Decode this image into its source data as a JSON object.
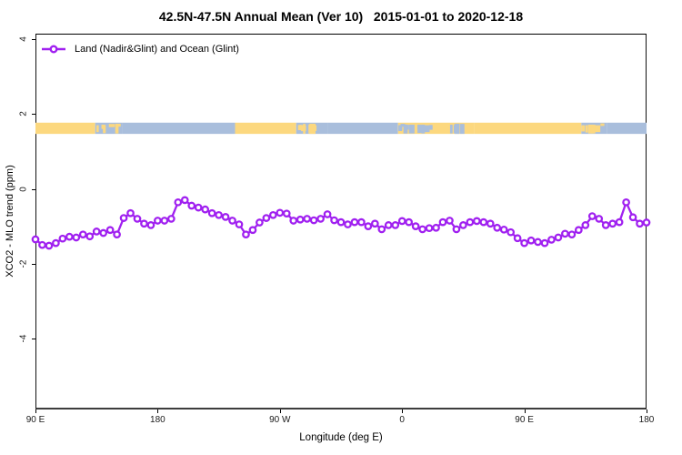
{
  "title": "42.5N-47.5N Annual Mean (Ver 10)   2015-01-01 to 2020-12-18",
  "legend": {
    "label": "Land (Nadir&Glint) and Ocean (Glint)"
  },
  "chart_data": {
    "type": "line",
    "title": "42.5N-47.5N Annual Mean (Ver 10)   2015-01-01 to 2020-12-18",
    "xlabel": "Longitude (deg E)",
    "ylabel": "XCO2 - MLO trend (ppm)",
    "xlim": [
      90,
      540
    ],
    "ylim": [
      -5.9,
      4.15
    ],
    "grid": false,
    "legend_position": "top-left",
    "x_ticks": [
      {
        "value": 90,
        "label": "90 E"
      },
      {
        "value": 180,
        "label": "180"
      },
      {
        "value": 270,
        "label": "90 W"
      },
      {
        "value": 360,
        "label": "0"
      },
      {
        "value": 450,
        "label": "90 E"
      },
      {
        "value": 540,
        "label": "180"
      }
    ],
    "y_ticks": [
      {
        "value": 4,
        "label": "4"
      },
      {
        "value": 2,
        "label": "2"
      },
      {
        "value": 0,
        "label": "0"
      },
      {
        "value": -2,
        "label": "-2"
      },
      {
        "value": -4,
        "label": "-4"
      }
    ],
    "series": [
      {
        "name": "Land (Nadir&Glint) and Ocean (Glint)",
        "color": "#A020F0",
        "marker": "open-circle",
        "x": [
          90,
          95,
          100,
          105,
          110,
          115,
          120,
          125,
          130,
          135,
          140,
          145,
          150,
          155,
          160,
          165,
          170,
          175,
          180,
          185,
          190,
          195,
          200,
          205,
          210,
          215,
          220,
          225,
          230,
          235,
          240,
          245,
          250,
          255,
          260,
          265,
          270,
          275,
          280,
          285,
          290,
          295,
          300,
          305,
          310,
          315,
          320,
          325,
          330,
          335,
          340,
          345,
          350,
          355,
          360,
          365,
          370,
          375,
          380,
          385,
          390,
          395,
          400,
          405,
          410,
          415,
          420,
          425,
          430,
          435,
          440,
          445,
          450,
          455,
          460,
          465,
          470,
          475,
          480,
          485,
          490,
          495,
          500,
          505,
          510,
          515,
          520,
          525,
          530,
          535,
          540
        ],
        "y": [
          -1.35,
          -1.5,
          -1.52,
          -1.45,
          -1.33,
          -1.28,
          -1.3,
          -1.22,
          -1.27,
          -1.14,
          -1.18,
          -1.1,
          -1.22,
          -0.78,
          -0.65,
          -0.8,
          -0.93,
          -0.97,
          -0.85,
          -0.85,
          -0.8,
          -0.36,
          -0.3,
          -0.45,
          -0.5,
          -0.55,
          -0.65,
          -0.7,
          -0.75,
          -0.85,
          -0.95,
          -1.22,
          -1.1,
          -0.9,
          -0.78,
          -0.7,
          -0.64,
          -0.66,
          -0.85,
          -0.82,
          -0.8,
          -0.84,
          -0.8,
          -0.68,
          -0.84,
          -0.89,
          -0.95,
          -0.89,
          -0.89,
          -1.0,
          -0.93,
          -1.08,
          -0.97,
          -0.97,
          -0.86,
          -0.89,
          -1.0,
          -1.08,
          -1.05,
          -1.04,
          -0.89,
          -0.85,
          -1.08,
          -0.97,
          -0.89,
          -0.86,
          -0.89,
          -0.93,
          -1.04,
          -1.09,
          -1.16,
          -1.32,
          -1.45,
          -1.38,
          -1.42,
          -1.45,
          -1.36,
          -1.3,
          -1.2,
          -1.22,
          -1.1,
          -0.97,
          -0.73,
          -0.8,
          -0.97,
          -0.93,
          -0.89,
          -0.36,
          -0.76,
          -0.93,
          -0.9
        ]
      }
    ],
    "surface_band": {
      "description": "land/ocean surface-type strip along longitude",
      "y_top_value": 1.77,
      "y_bottom_value": 1.47,
      "land_color": "#FCD87F",
      "ocean_color": "#A9BEDC",
      "segments": [
        {
          "from": 90,
          "to": 134,
          "type": "land"
        },
        {
          "from": 134,
          "to": 154,
          "type": "mixed-ocean"
        },
        {
          "from": 154,
          "to": 237,
          "type": "ocean"
        },
        {
          "from": 237,
          "to": 282,
          "type": "land"
        },
        {
          "from": 282,
          "to": 305,
          "type": "mixed-ocean"
        },
        {
          "from": 305,
          "to": 357,
          "type": "ocean"
        },
        {
          "from": 357,
          "to": 413,
          "type": "mixed-land"
        },
        {
          "from": 413,
          "to": 492,
          "type": "land"
        },
        {
          "from": 492,
          "to": 511,
          "type": "mixed-ocean"
        },
        {
          "from": 511,
          "to": 540,
          "type": "ocean"
        }
      ]
    }
  }
}
